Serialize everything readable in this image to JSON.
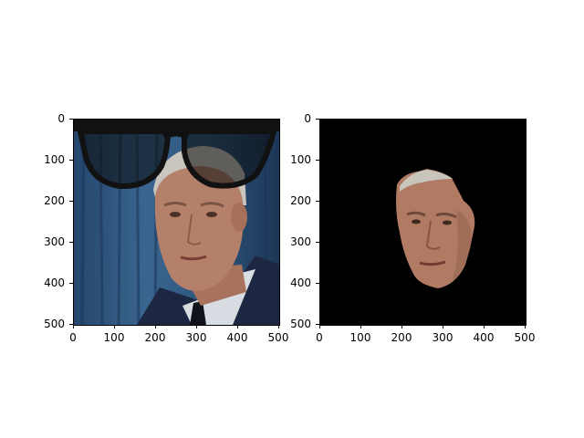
{
  "figure": {
    "panels": [
      {
        "id": "left",
        "content": "face with overlaid black glasses",
        "x_ticks": [
          "0",
          "100",
          "200",
          "300",
          "400",
          "500"
        ],
        "y_ticks": [
          "0",
          "100",
          "200",
          "300",
          "400",
          "500"
        ],
        "xlim": [
          0,
          500
        ],
        "ylim": [
          500,
          0
        ]
      },
      {
        "id": "right",
        "content": "segmented face on black background",
        "x_ticks": [
          "0",
          "100",
          "200",
          "300",
          "400",
          "500"
        ],
        "y_ticks": [
          "0",
          "100",
          "200",
          "300",
          "400",
          "500"
        ],
        "xlim": [
          0,
          500
        ],
        "ylim": [
          500,
          0
        ]
      }
    ]
  },
  "colors": {
    "background_blue": "#2d5277",
    "skin": "#b4806a",
    "hair": "#c8c6be",
    "uniform": "#1d2741",
    "glasses": "#111111",
    "mask_bg": "#000000"
  }
}
